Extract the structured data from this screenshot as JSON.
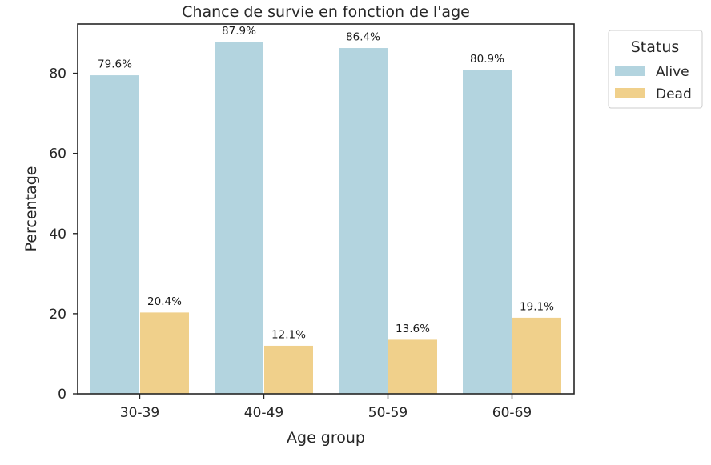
{
  "chart_data": {
    "type": "bar",
    "title": "Chance de survie en fonction de l'age",
    "xlabel": "Age group",
    "ylabel": "Percentage",
    "categories": [
      "30-39",
      "40-49",
      "50-59",
      "60-69"
    ],
    "series": [
      {
        "name": "Alive",
        "color": "#b3d4df",
        "values": [
          79.6,
          87.9,
          86.4,
          80.9
        ],
        "labels": [
          "79.6%",
          "87.9%",
          "86.4%",
          "80.9%"
        ]
      },
      {
        "name": "Dead",
        "color": "#f0d08b",
        "values": [
          20.4,
          12.1,
          13.6,
          19.1
        ],
        "labels": [
          "20.4%",
          "12.1%",
          "13.6%",
          "19.1%"
        ]
      }
    ],
    "yticks": [
      0,
      20,
      40,
      60,
      80
    ],
    "ylim": [
      0,
      92.3
    ],
    "grid": false,
    "legend": {
      "title": "Status",
      "placement": "outside-right-top"
    }
  }
}
